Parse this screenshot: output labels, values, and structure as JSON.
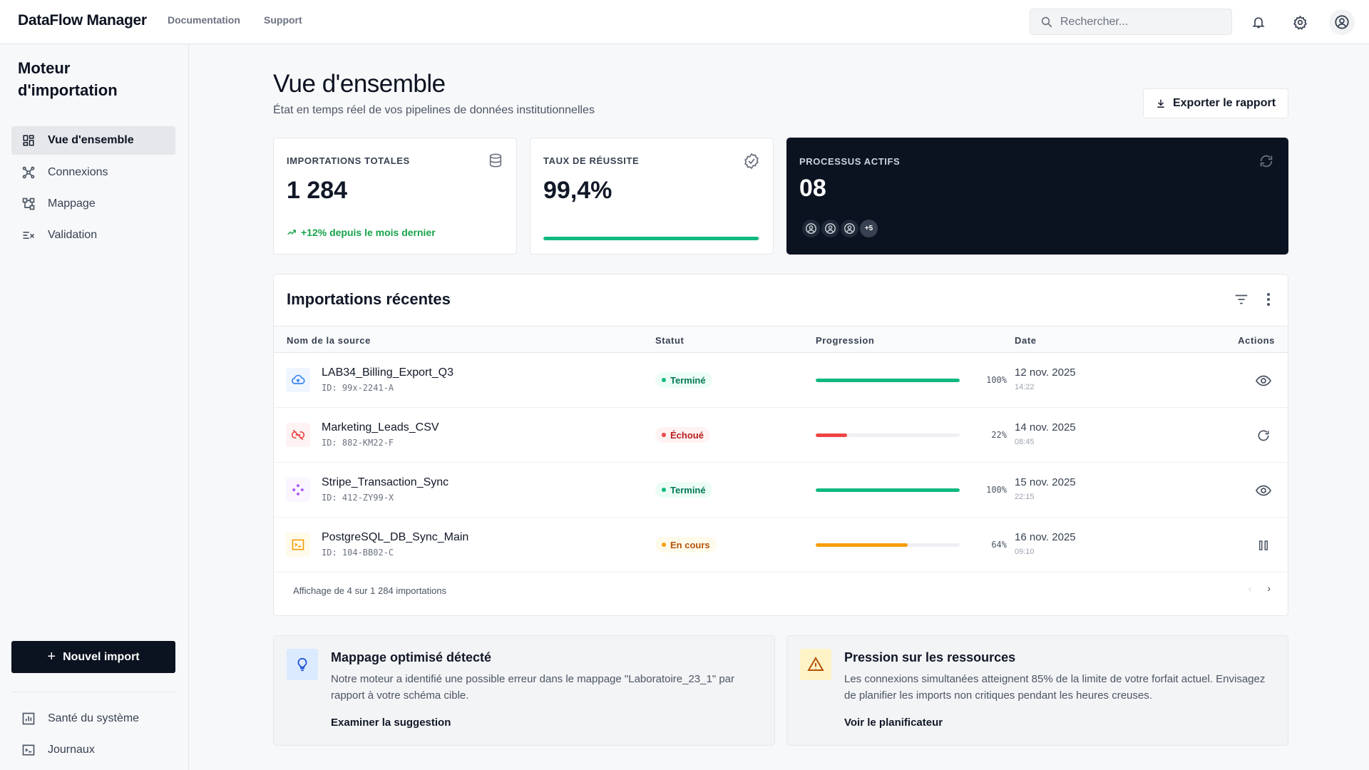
{
  "app": {
    "brand": "DataFlow Manager",
    "nav_links": [
      "Documentation",
      "Support"
    ],
    "search_placeholder": "Rechercher..."
  },
  "sidebar": {
    "title": "Moteur d'importation",
    "items": [
      {
        "label": "Vue d'ensemble",
        "icon": "grid-icon",
        "active": true
      },
      {
        "label": "Connexions",
        "icon": "network-icon",
        "active": false
      },
      {
        "label": "Mappage",
        "icon": "mapping-icon",
        "active": false
      },
      {
        "label": "Validation",
        "icon": "validation-icon",
        "active": false
      }
    ],
    "new_import_label": "Nouvel import",
    "bottom_items": [
      {
        "label": "Santé du système",
        "icon": "chart-icon"
      },
      {
        "label": "Journaux",
        "icon": "terminal-icon"
      }
    ]
  },
  "header": {
    "title": "Vue d'ensemble",
    "subtitle": "État en temps réel de vos pipelines de données institutionnelles",
    "export_label": "Exporter le rapport"
  },
  "stats": {
    "total": {
      "label": "Importations totales",
      "value": "1 284",
      "trend": "+12% depuis le mois dernier",
      "icon": "database-icon"
    },
    "success": {
      "label": "Taux de réussite",
      "value": "99,4%",
      "progress": 0.994,
      "icon": "check-badge-icon"
    },
    "active": {
      "label": "Processus actifs",
      "value": "08",
      "more_count": "+5",
      "icon": "sync-icon"
    }
  },
  "recent": {
    "title": "Importations récentes",
    "columns": [
      "Nom de la source",
      "Statut",
      "Progression",
      "Date",
      "Actions"
    ],
    "rows": [
      {
        "name": "LAB34_Billing_Export_Q3",
        "id": "ID: 99x-2241-A",
        "status": "Terminé",
        "status_kind": "success",
        "progress": 100,
        "progress_label": "100%",
        "date": "12 nov. 2025",
        "time": "14:22",
        "icon": "cloud-upload-icon",
        "action": "eye-icon"
      },
      {
        "name": "Marketing_Leads_CSV",
        "id": "ID: 882-KM22-F",
        "status": "Échoué",
        "status_kind": "error",
        "progress": 22,
        "progress_label": "22%",
        "date": "14 nov. 2025",
        "time": "08:45",
        "icon": "link-off-icon",
        "action": "retry-icon"
      },
      {
        "name": "Stripe_Transaction_Sync",
        "id": "ID: 412-ZY99-X",
        "status": "Terminé",
        "status_kind": "success",
        "progress": 100,
        "progress_label": "100%",
        "date": "15 nov. 2025",
        "time": "22:15",
        "icon": "hub-icon",
        "action": "eye-icon"
      },
      {
        "name": "PostgreSQL_DB_Sync_Main",
        "id": "ID: 104-BB02-C",
        "status": "En cours",
        "status_kind": "running",
        "progress": 64,
        "progress_label": "64%",
        "date": "16 nov. 2025",
        "time": "09:10",
        "icon": "terminal-box-icon",
        "action": "pause-icon"
      }
    ],
    "footer": "Affichage de 4 sur 1 284 importations"
  },
  "insights": [
    {
      "title": "Mappage optimisé détecté",
      "text": "Notre moteur a identifié une possible erreur dans le mappage \"Laboratoire_23_1\" par rapport à votre schéma cible.",
      "link": "Examiner la suggestion",
      "icon": "lightbulb-icon"
    },
    {
      "title": "Pression sur les ressources",
      "text": "Les connexions simultanées atteignent 85% de la limite de votre forfait actuel. Envisagez de planifier les imports non critiques pendant les heures creuses.",
      "link": "Voir le planificateur",
      "icon": "warning-icon"
    }
  ],
  "colors": {
    "dark": "#0b1220",
    "success": "#10b981",
    "error": "#ef4444",
    "running": "#f59e0b",
    "accent_blue": "#3b82f6",
    "accent_purple": "#a855f7"
  }
}
